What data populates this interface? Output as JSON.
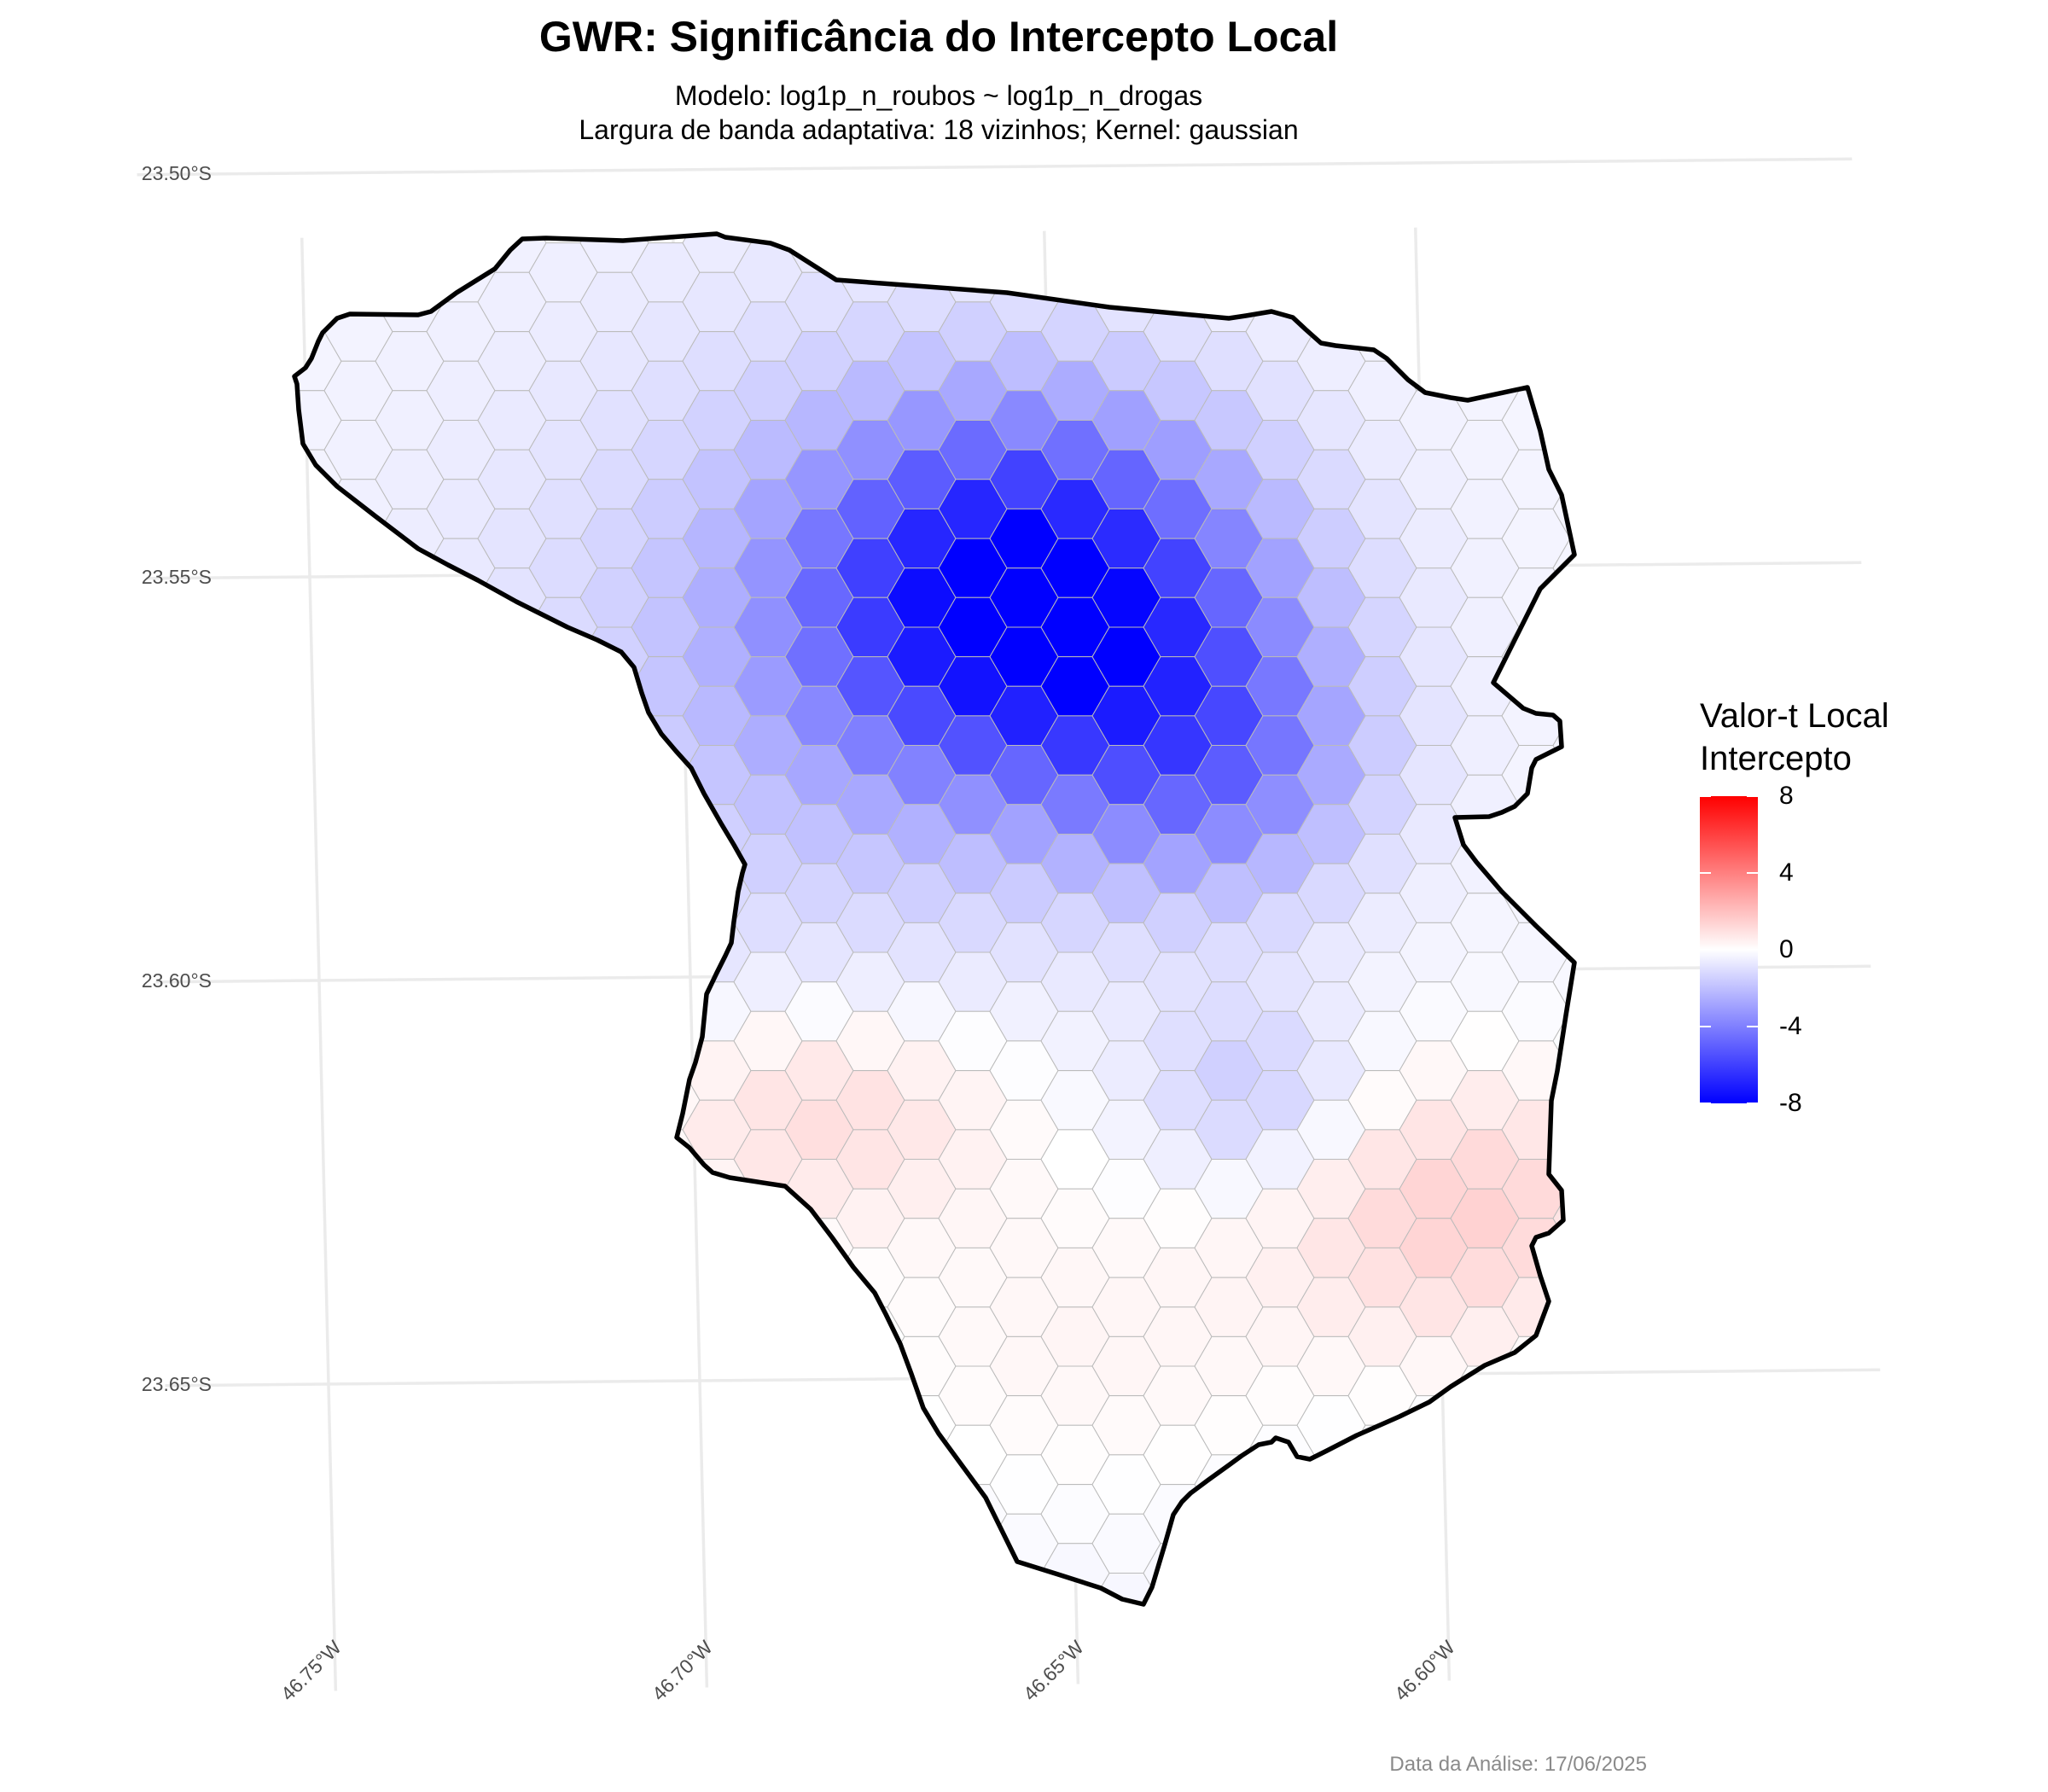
{
  "title": "GWR: Significância do Intercepto Local",
  "subtitle_1": "Modelo: log1p_n_roubos ~ log1p_n_drogas",
  "subtitle_2": "Largura de banda adaptativa: 18 vizinhos; Kernel: gaussian",
  "caption": "Data da Análise: 17/06/2025",
  "lat_ticks": [
    {
      "value": -23.5,
      "label": "23.50°S"
    },
    {
      "value": -23.55,
      "label": "23.55°S"
    },
    {
      "value": -23.6,
      "label": "23.60°S"
    },
    {
      "value": -23.65,
      "label": "23.65°S"
    }
  ],
  "lon_ticks": [
    {
      "value": -46.75,
      "label": "46.75°W"
    },
    {
      "value": -46.7,
      "label": "46.70°W"
    },
    {
      "value": -46.65,
      "label": "46.65°W"
    },
    {
      "value": -46.6,
      "label": "46.60°W"
    }
  ],
  "legend": {
    "title_line_1": "Valor-t Local",
    "title_line_2": "Intercepto",
    "min": -8,
    "max": 8,
    "low_color": "#0000ff",
    "mid_color": "#ffffff",
    "high_color": "#ff0000",
    "ticks": [
      {
        "value": 8,
        "label": "8"
      },
      {
        "value": 4,
        "label": "4"
      },
      {
        "value": 0,
        "label": "0"
      },
      {
        "value": -4,
        "label": "-4"
      },
      {
        "value": -8,
        "label": "-8"
      }
    ]
  },
  "surface": {
    "peaks": [
      {
        "lon": -46.653,
        "lat": -23.554,
        "t": -8.0,
        "spread_lon": 0.021,
        "spread_lat": 0.016
      },
      {
        "lon": -46.628,
        "lat": -23.574,
        "t": -3.2,
        "spread_lon": 0.014,
        "spread_lat": 0.012
      },
      {
        "lon": -46.625,
        "lat": -23.615,
        "t": -1.4,
        "spread_lon": 0.01,
        "spread_lat": 0.008
      },
      {
        "lon": -46.685,
        "lat": -23.562,
        "t": -1.3,
        "spread_lon": 0.03,
        "spread_lat": 0.03
      },
      {
        "lon": -46.683,
        "lat": -23.617,
        "t": 1.5,
        "spread_lon": 0.018,
        "spread_lat": 0.01
      },
      {
        "lon": -46.596,
        "lat": -23.63,
        "t": 1.7,
        "spread_lon": 0.018,
        "spread_lat": 0.012
      },
      {
        "lon": -46.648,
        "lat": -23.645,
        "t": 0.6,
        "spread_lon": 0.025,
        "spread_lat": 0.015
      }
    ],
    "base_t": -0.3
  },
  "colors": {
    "boundary": "#000000",
    "hex_edge": "#bbbbbb",
    "grid": "#ebebeb",
    "tick_text": "#4d4d4d"
  }
}
